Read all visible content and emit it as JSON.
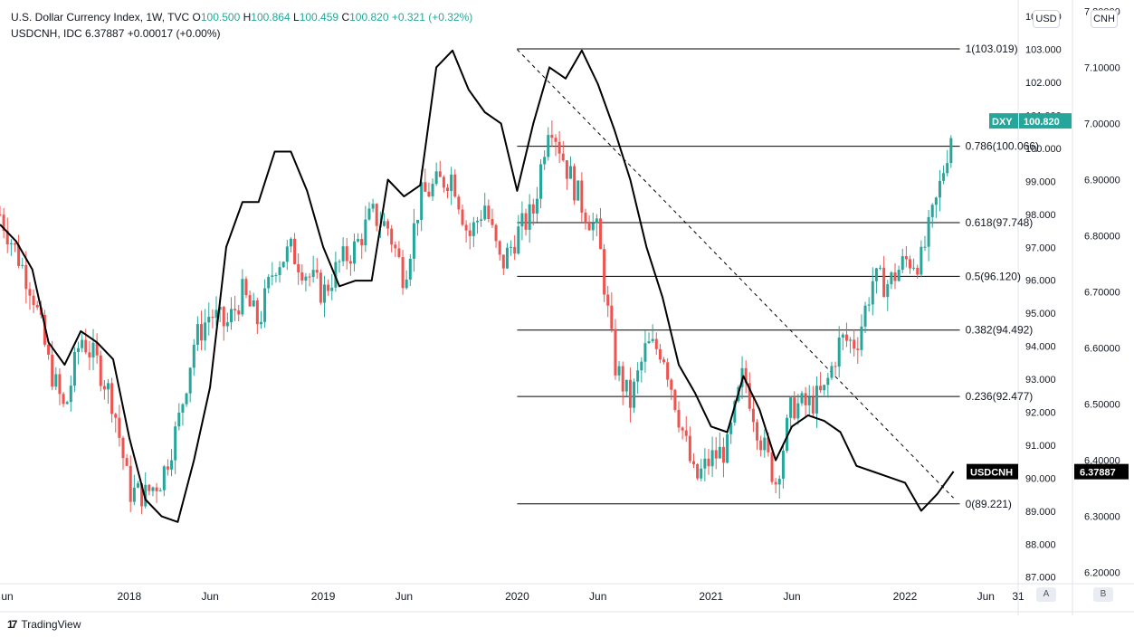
{
  "legend": {
    "dxy": {
      "title": "U.S. Dollar Currency Index, 1W, TVC",
      "o_label": "O",
      "o": "100.500",
      "h_label": "H",
      "h": "100.864",
      "l_label": "L",
      "l": "100.459",
      "c_label": "C",
      "c": "100.820",
      "change": "+0.321 (+0.32%)"
    },
    "cnh": {
      "title": "USDCNH, IDC",
      "value": "6.37887",
      "change": "+0.00017 (+0.00%)"
    }
  },
  "axis_titles": {
    "left": "USD",
    "right": "CNH"
  },
  "buttons": {
    "auto": "A",
    "log": "B"
  },
  "branding": {
    "name": "TradingView"
  },
  "colors": {
    "up": "#26a69a",
    "down": "#ef5350",
    "line": "#000000",
    "dxy_tag": "#26a69a",
    "cnh_tag": "#000000"
  },
  "chart_data": {
    "type": "candlestick+line",
    "interval": "1W",
    "x_ticks": [
      "un",
      "2018",
      "Jun",
      "2019",
      "Jun",
      "2020",
      "Jun",
      "2021",
      "Jun",
      "2022",
      "Jun",
      "31"
    ],
    "x_range": [
      "2017-05",
      "2022-08"
    ],
    "y_left": {
      "title": "USD",
      "ticks": [
        "87.000",
        "88.000",
        "89.000",
        "90.000",
        "91.000",
        "92.000",
        "93.000",
        "94.000",
        "95.000",
        "96.000",
        "97.000",
        "98.000",
        "99.000",
        "100.000",
        "101.000",
        "102.000",
        "103.000",
        "104.000"
      ],
      "range": [
        86.8,
        104.5
      ]
    },
    "y_right": {
      "title": "CNH",
      "ticks": [
        "6.20000",
        "6.30000",
        "6.40000",
        "6.50000",
        "6.60000",
        "6.70000",
        "6.80000",
        "6.90000",
        "7.00000",
        "7.10000",
        "7.20000"
      ],
      "range": [
        6.18,
        7.22
      ]
    },
    "last_labels": {
      "dxy": {
        "symbol": "DXY",
        "value": "100.820"
      },
      "cnh": {
        "symbol": "USDCNH",
        "value": "6.37887"
      }
    },
    "fibonacci": [
      {
        "label": "1(103.019)",
        "value": 103.019
      },
      {
        "label": "0.786(100.066)",
        "value": 100.066
      },
      {
        "label": "0.618(97.748)",
        "value": 97.748
      },
      {
        "label": "0.5(96.120)",
        "value": 96.12
      },
      {
        "label": "0.382(94.492)",
        "value": 94.492
      },
      {
        "label": "0.236(92.477)",
        "value": 92.477
      },
      {
        "label": "0(89.221)",
        "value": 89.221
      }
    ],
    "dxy_close_path": [
      [
        "2017-05",
        98.0
      ],
      [
        "2017-07",
        95.7
      ],
      [
        "2017-08",
        93.5
      ],
      [
        "2017-09",
        92.0
      ],
      [
        "2017-10",
        94.3
      ],
      [
        "2017-11",
        93.5
      ],
      [
        "2017-12",
        92.3
      ],
      [
        "2018-01",
        89.6
      ],
      [
        "2018-02",
        89.5
      ],
      [
        "2018-03",
        90.0
      ],
      [
        "2018-04",
        91.6
      ],
      [
        "2018-05",
        94.1
      ],
      [
        "2018-06",
        95.0
      ],
      [
        "2018-07",
        94.6
      ],
      [
        "2018-08",
        95.6
      ],
      [
        "2018-09",
        94.7
      ],
      [
        "2018-10",
        96.5
      ],
      [
        "2018-11",
        96.9
      ],
      [
        "2018-12",
        96.2
      ],
      [
        "2019-01",
        95.6
      ],
      [
        "2019-02",
        96.5
      ],
      [
        "2019-03",
        97.0
      ],
      [
        "2019-04",
        98.0
      ],
      [
        "2019-05",
        97.6
      ],
      [
        "2019-06",
        96.1
      ],
      [
        "2019-07",
        98.5
      ],
      [
        "2019-08",
        98.9
      ],
      [
        "2019-09",
        99.2
      ],
      [
        "2019-10",
        97.3
      ],
      [
        "2019-11",
        98.3
      ],
      [
        "2019-12",
        96.4
      ],
      [
        "2020-01",
        97.4
      ],
      [
        "2020-02",
        98.1
      ],
      [
        "2020-03",
        101.0
      ],
      [
        "2020-04",
        99.5
      ],
      [
        "2020-05",
        98.3
      ],
      [
        "2020-06",
        97.4
      ],
      [
        "2020-07",
        93.5
      ],
      [
        "2020-08",
        92.3
      ],
      [
        "2020-09",
        94.0
      ],
      [
        "2020-10",
        93.9
      ],
      [
        "2020-11",
        91.9
      ],
      [
        "2020-12",
        89.9
      ],
      [
        "2021-01",
        90.6
      ],
      [
        "2021-02",
        90.9
      ],
      [
        "2021-03",
        93.2
      ],
      [
        "2021-04",
        91.3
      ],
      [
        "2021-05",
        89.9
      ],
      [
        "2021-06",
        92.2
      ],
      [
        "2021-07",
        92.2
      ],
      [
        "2021-08",
        92.6
      ],
      [
        "2021-09",
        94.2
      ],
      [
        "2021-10",
        94.1
      ],
      [
        "2021-11",
        96.0
      ],
      [
        "2021-12",
        95.9
      ],
      [
        "2022-01",
        96.6
      ],
      [
        "2022-02",
        96.6
      ],
      [
        "2022-03",
        98.5
      ],
      [
        "2022-04",
        100.8
      ]
    ],
    "usdcnh_path": [
      [
        "2017-05",
        6.82
      ],
      [
        "2017-06",
        6.79
      ],
      [
        "2017-07",
        6.74
      ],
      [
        "2017-08",
        6.61
      ],
      [
        "2017-09",
        6.57
      ],
      [
        "2017-10",
        6.63
      ],
      [
        "2017-11",
        6.61
      ],
      [
        "2017-12",
        6.58
      ],
      [
        "2018-01",
        6.44
      ],
      [
        "2018-02",
        6.33
      ],
      [
        "2018-03",
        6.3
      ],
      [
        "2018-04",
        6.29
      ],
      [
        "2018-05",
        6.4
      ],
      [
        "2018-06",
        6.53
      ],
      [
        "2018-07",
        6.78
      ],
      [
        "2018-08",
        6.86
      ],
      [
        "2018-09",
        6.86
      ],
      [
        "2018-10",
        6.95
      ],
      [
        "2018-11",
        6.95
      ],
      [
        "2018-12",
        6.88
      ],
      [
        "2019-01",
        6.78
      ],
      [
        "2019-02",
        6.71
      ],
      [
        "2019-03",
        6.72
      ],
      [
        "2019-04",
        6.72
      ],
      [
        "2019-05",
        6.9
      ],
      [
        "2019-06",
        6.87
      ],
      [
        "2019-07",
        6.89
      ],
      [
        "2019-08",
        7.1
      ],
      [
        "2019-09",
        7.13
      ],
      [
        "2019-10",
        7.06
      ],
      [
        "2019-11",
        7.02
      ],
      [
        "2019-12",
        7.0
      ],
      [
        "2020-01",
        6.88
      ],
      [
        "2020-02",
        7.0
      ],
      [
        "2020-03",
        7.1
      ],
      [
        "2020-04",
        7.08
      ],
      [
        "2020-05",
        7.13
      ],
      [
        "2020-06",
        7.07
      ],
      [
        "2020-07",
        6.99
      ],
      [
        "2020-08",
        6.9
      ],
      [
        "2020-09",
        6.78
      ],
      [
        "2020-10",
        6.69
      ],
      [
        "2020-11",
        6.57
      ],
      [
        "2020-12",
        6.52
      ],
      [
        "2021-01",
        6.46
      ],
      [
        "2021-02",
        6.45
      ],
      [
        "2021-03",
        6.55
      ],
      [
        "2021-04",
        6.49
      ],
      [
        "2021-05",
        6.4
      ],
      [
        "2021-06",
        6.46
      ],
      [
        "2021-07",
        6.48
      ],
      [
        "2021-08",
        6.47
      ],
      [
        "2021-09",
        6.45
      ],
      [
        "2021-10",
        6.39
      ],
      [
        "2021-11",
        6.38
      ],
      [
        "2021-12",
        6.37
      ],
      [
        "2022-01",
        6.36
      ],
      [
        "2022-02",
        6.31
      ],
      [
        "2022-03",
        6.34
      ],
      [
        "2022-04",
        6.38
      ]
    ]
  }
}
